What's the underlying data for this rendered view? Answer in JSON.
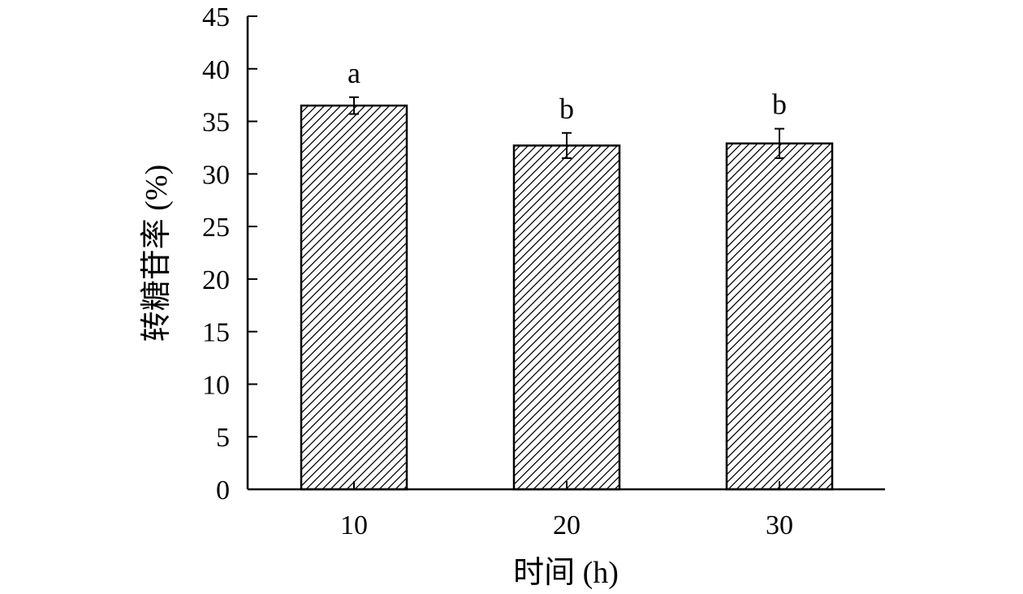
{
  "chart_data": {
    "type": "bar",
    "title": "",
    "xlabel": "时间 (h)",
    "ylabel": "转糖苷率 (%)",
    "categories": [
      "10",
      "20",
      "30"
    ],
    "values": [
      36.5,
      32.7,
      32.9
    ],
    "errors": [
      0.8,
      1.2,
      1.4
    ],
    "significance_letters": [
      "a",
      "b",
      "b"
    ],
    "ylim": [
      0,
      45
    ],
    "yticks": [
      0,
      5,
      10,
      15,
      20,
      25,
      30,
      35,
      40,
      45
    ],
    "bar_fill": "diagonal-hatch",
    "colors": {
      "bar_stroke": "#000000",
      "hatch": "#000000",
      "axis": "#000000"
    },
    "grid": false,
    "legend": "none"
  }
}
